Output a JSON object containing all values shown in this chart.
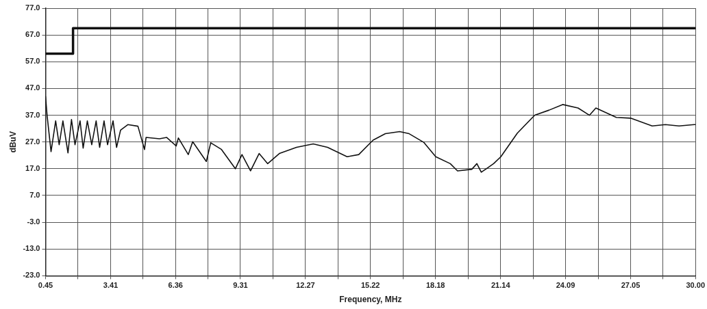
{
  "chart_data": {
    "type": "line",
    "xlabel": "Frequency, MHz",
    "ylabel": "dBuV",
    "xlim": [
      0.45,
      30.0
    ],
    "ylim": [
      -23.0,
      77.0
    ],
    "xticks": [
      {
        "value": 0.45,
        "label": "0.45"
      },
      {
        "value": 1.9275,
        "label": null
      },
      {
        "value": 3.41,
        "label": "3.41"
      },
      {
        "value": 4.885,
        "label": null
      },
      {
        "value": 6.36,
        "label": "6.36"
      },
      {
        "value": 7.835,
        "label": null
      },
      {
        "value": 9.31,
        "label": "9.31"
      },
      {
        "value": 10.79,
        "label": null
      },
      {
        "value": 12.27,
        "label": "12.27"
      },
      {
        "value": 13.745,
        "label": null
      },
      {
        "value": 15.22,
        "label": "15.22"
      },
      {
        "value": 16.7,
        "label": null
      },
      {
        "value": 18.18,
        "label": "18.18"
      },
      {
        "value": 19.66,
        "label": null
      },
      {
        "value": 21.14,
        "label": "21.14"
      },
      {
        "value": 22.615,
        "label": null
      },
      {
        "value": 24.09,
        "label": "24.09"
      },
      {
        "value": 25.57,
        "label": null
      },
      {
        "value": 27.05,
        "label": "27.05"
      },
      {
        "value": 28.525,
        "label": null
      },
      {
        "value": 30.0,
        "label": "30.00"
      }
    ],
    "yticks": [
      {
        "value": -23,
        "label": "-23.0"
      },
      {
        "value": -13,
        "label": "-13.0"
      },
      {
        "value": -3,
        "label": "-3.0"
      },
      {
        "value": 7,
        "label": "7.0"
      },
      {
        "value": 17,
        "label": "17.0"
      },
      {
        "value": 27,
        "label": "27.0"
      },
      {
        "value": 37,
        "label": "37.0"
      },
      {
        "value": 47,
        "label": "47.0"
      },
      {
        "value": 57,
        "label": "57.0"
      },
      {
        "value": 67,
        "label": "67.0"
      },
      {
        "value": 77,
        "label": "77.0"
      }
    ],
    "grid": true,
    "legend": false,
    "marker": "none",
    "series": [
      {
        "type": "step",
        "color": "#111111",
        "x": [
          0.45,
          1.7,
          30.0
        ],
        "values": [
          60,
          69.5,
          69.5
        ]
      },
      {
        "type": "line",
        "color": "#111111",
        "x": [
          0.45,
          0.52,
          0.7,
          0.91,
          1.07,
          1.24,
          1.47,
          1.63,
          1.79,
          2.02,
          2.16,
          2.35,
          2.55,
          2.75,
          2.91,
          3.11,
          3.27,
          3.52,
          3.68,
          3.86,
          4.19,
          4.65,
          4.95,
          5.02,
          5.63,
          5.96,
          6.39,
          6.49,
          6.94,
          7.14,
          7.76,
          7.96,
          8.45,
          9.08,
          9.38,
          9.77,
          10.16,
          10.55,
          11.08,
          11.86,
          12.62,
          13.27,
          14.16,
          14.69,
          15.34,
          15.9,
          16.55,
          16.98,
          17.64,
          18.19,
          18.85,
          19.18,
          19.83,
          20.06,
          20.26,
          20.49,
          20.82,
          21.15,
          21.9,
          22.69,
          23.34,
          23.96,
          24.66,
          25.18,
          25.47,
          26.4,
          27.05,
          28.03,
          28.63,
          29.25,
          29.94,
          30.0
        ],
        "values": [
          44,
          37,
          23.4,
          34.9,
          26,
          34.9,
          22.9,
          35.4,
          26,
          34.9,
          24.7,
          34.9,
          26,
          34.9,
          25,
          34.9,
          26,
          34.9,
          25,
          31.4,
          33.5,
          32.9,
          24.2,
          28.7,
          28.2,
          28.7,
          25.5,
          28.5,
          22.3,
          27.1,
          19.7,
          26.7,
          24.2,
          17,
          22.3,
          16.2,
          22.7,
          18.9,
          22.7,
          25,
          26.3,
          25,
          21.5,
          22.3,
          27.7,
          30.1,
          30.9,
          30.1,
          26.9,
          21.5,
          18.9,
          16.2,
          16.8,
          18.9,
          15.7,
          17,
          18.9,
          21.5,
          30.3,
          37,
          38.9,
          41,
          39.7,
          37,
          39.7,
          36.2,
          35.9,
          33,
          33.5,
          33,
          33.5,
          33.5
        ]
      }
    ]
  }
}
